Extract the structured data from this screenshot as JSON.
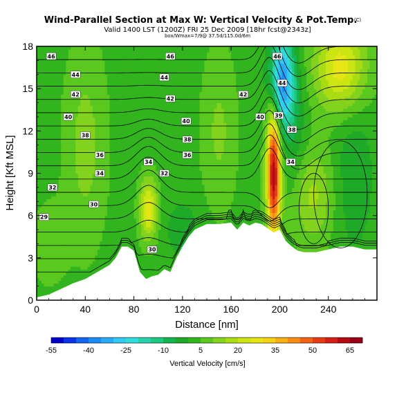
{
  "chart_data": {
    "type": "heatmap",
    "title": "Wind-Parallel Section at Max W: Vertical Velocity & Pot.Temp.",
    "title_mark": "(C)",
    "subtitle": "Valid 1400 LST (1200Z) FRI 25 Dec 2009 [18hr fcst@2343z]",
    "subtitle2": "box/Wmax=7/9@ 37.5d/115.0d/6m",
    "xlabel": "Distance [nm]",
    "ylabel": "Height [Kft MSL]",
    "xlim": [
      0,
      280
    ],
    "ylim": [
      0,
      18
    ],
    "xticks": [
      0,
      40,
      80,
      120,
      160,
      200,
      240
    ],
    "yticks": [
      0,
      3,
      6,
      9,
      12,
      15,
      18
    ],
    "colorbar": {
      "label": "Vertical Velocity [cm/s]",
      "tick_labels": [
        "-55",
        "-40",
        "-25",
        "-10",
        "5",
        "20",
        "35",
        "50",
        "65"
      ],
      "tick_values": [
        -55,
        -40,
        -25,
        -10,
        5,
        20,
        35,
        50,
        65
      ],
      "bins": [
        -55,
        -50,
        -45,
        -40,
        -35,
        -30,
        -25,
        -20,
        -15,
        -10,
        -5,
        0,
        5,
        10,
        15,
        20,
        25,
        30,
        35,
        40,
        45,
        50,
        55,
        60,
        65,
        70
      ],
      "colors": [
        "#0000c8",
        "#0a32e6",
        "#1464f0",
        "#1e8cf5",
        "#28aaf5",
        "#32c8f0",
        "#32dcdc",
        "#28d2aa",
        "#1ec882",
        "#14b450",
        "#1eaa28",
        "#32b41e",
        "#5ac81e",
        "#82d21e",
        "#aadc14",
        "#cce614",
        "#e6e614",
        "#f5d214",
        "#f5af14",
        "#f58c14",
        "#f06414",
        "#e63c14",
        "#d21e14",
        "#b40a14",
        "#960014"
      ]
    },
    "terrain_profile": {
      "x": [
        0,
        5,
        10,
        15,
        20,
        25,
        30,
        40,
        50,
        60,
        65,
        70,
        75,
        80,
        85,
        90,
        95,
        100,
        105,
        110,
        115,
        120,
        125,
        130,
        140,
        150,
        160,
        165,
        170,
        175,
        180,
        185,
        190,
        195,
        200,
        205,
        210,
        215,
        220,
        230,
        240,
        250,
        260,
        270,
        280
      ],
      "height": [
        0.2,
        0.3,
        0.4,
        0.6,
        0.8,
        1.0,
        1.2,
        1.5,
        2.0,
        2.5,
        3.0,
        3.8,
        3.8,
        3.5,
        2.0,
        1.5,
        1.7,
        1.8,
        2.2,
        2.0,
        3.0,
        3.8,
        4.5,
        5.0,
        5.4,
        5.4,
        5.5,
        5.0,
        5.5,
        5.3,
        5.5,
        5.4,
        5.1,
        4.8,
        5.0,
        4.2,
        3.8,
        3.5,
        3.4,
        3.4,
        3.6,
        3.8,
        3.8,
        3.6,
        3.6
      ]
    },
    "velocity_features": [
      {
        "x": 195,
        "z": 9.0,
        "sx": 4,
        "sz": 3.2,
        "w": 60
      },
      {
        "x": 202,
        "z": 15.5,
        "sx": 7,
        "sz": 2.2,
        "w": -40
      },
      {
        "x": 92,
        "z": 6.5,
        "sx": 5,
        "sz": 1.5,
        "w": 25
      },
      {
        "x": 250,
        "z": 16.5,
        "sx": 15,
        "sz": 2.2,
        "w": 25
      },
      {
        "x": 225,
        "z": 7.5,
        "sx": 14,
        "sz": 2.5,
        "w": 14
      },
      {
        "x": 40,
        "z": 11.0,
        "sx": 12,
        "sz": 5.0,
        "w": 9
      },
      {
        "x": 150,
        "z": 12.0,
        "sx": 10,
        "sz": 4.0,
        "w": 8
      },
      {
        "x": 212,
        "z": 10.5,
        "sx": 8,
        "sz": 3.5,
        "w": -8
      },
      {
        "x": 260,
        "z": 9.0,
        "sx": 12,
        "sz": 4.0,
        "w": -7
      },
      {
        "x": 120,
        "z": 5.0,
        "sx": 10,
        "sz": 1.5,
        "w": -6
      },
      {
        "x": 10,
        "z": 4.0,
        "sx": 10,
        "sz": 2.0,
        "w": 6
      }
    ],
    "theta_contours": {
      "levels": [
        29,
        30,
        31,
        32,
        33,
        34,
        35,
        36,
        37,
        38,
        39,
        40,
        41,
        42,
        43,
        44,
        45,
        46
      ],
      "labels": [
        {
          "text": "46",
          "x": 12,
          "z": 17.3
        },
        {
          "text": "46",
          "x": 110,
          "z": 17.3
        },
        {
          "text": "46",
          "x": 198,
          "z": 17.3
        },
        {
          "text": "44",
          "x": 32,
          "z": 16.0
        },
        {
          "text": "44",
          "x": 105,
          "z": 15.8
        },
        {
          "text": "44",
          "x": 202,
          "z": 15.4
        },
        {
          "text": "42",
          "x": 32,
          "z": 14.6
        },
        {
          "text": "42",
          "x": 110,
          "z": 14.3
        },
        {
          "text": "42",
          "x": 170,
          "z": 14.6
        },
        {
          "text": "40",
          "x": 26,
          "z": 13.0
        },
        {
          "text": "40",
          "x": 123,
          "z": 12.7
        },
        {
          "text": "40",
          "x": 184,
          "z": 13.0
        },
        {
          "text": "39",
          "x": 199,
          "z": 13.1
        },
        {
          "text": "38",
          "x": 40,
          "z": 11.7
        },
        {
          "text": "38",
          "x": 124,
          "z": 11.4
        },
        {
          "text": "38",
          "x": 210,
          "z": 12.1
        },
        {
          "text": "36",
          "x": 52,
          "z": 10.3
        },
        {
          "text": "36",
          "x": 124,
          "z": 10.3
        },
        {
          "text": "34",
          "x": 92,
          "z": 9.8
        },
        {
          "text": "34",
          "x": 52,
          "z": 9.0
        },
        {
          "text": "34",
          "x": 209,
          "z": 9.8
        },
        {
          "text": "32",
          "x": 13,
          "z": 8.0
        },
        {
          "text": "32",
          "x": 105,
          "z": 9.0
        },
        {
          "text": "30",
          "x": 47,
          "z": 6.8
        },
        {
          "text": "30",
          "x": 95,
          "z": 3.6
        },
        {
          "text": "29",
          "x": 6,
          "z": 5.9
        }
      ]
    }
  }
}
